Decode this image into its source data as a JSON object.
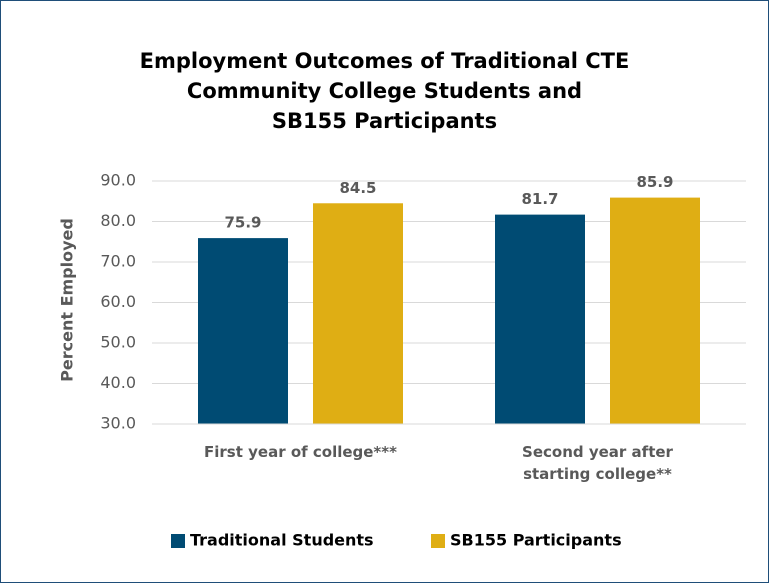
{
  "chart_data": {
    "type": "bar",
    "title": "Employment Outcomes of Traditional CTE\nCommunity College Students and\nSB155 Participants",
    "y_label": "Percent Employed",
    "categories": [
      "First year of college***",
      "Second year after\nstarting college**"
    ],
    "series": [
      {
        "name": "Traditional Students",
        "color": "#004b73",
        "values": [
          75.9,
          81.7
        ]
      },
      {
        "name": "SB155 Participants",
        "color": "#dfae14",
        "values": [
          84.5,
          85.9
        ]
      }
    ],
    "ylim": [
      30,
      90
    ],
    "yticks": [
      {
        "value": 30,
        "label": "30.0"
      },
      {
        "value": 40,
        "label": "40.0"
      },
      {
        "value": 50,
        "label": "50.0"
      },
      {
        "value": 60,
        "label": "60.0"
      },
      {
        "value": 70,
        "label": "70.0"
      },
      {
        "value": 80,
        "label": "80.0"
      },
      {
        "value": 90,
        "label": "90.0"
      }
    ],
    "grid": true,
    "legend": "bottom"
  }
}
